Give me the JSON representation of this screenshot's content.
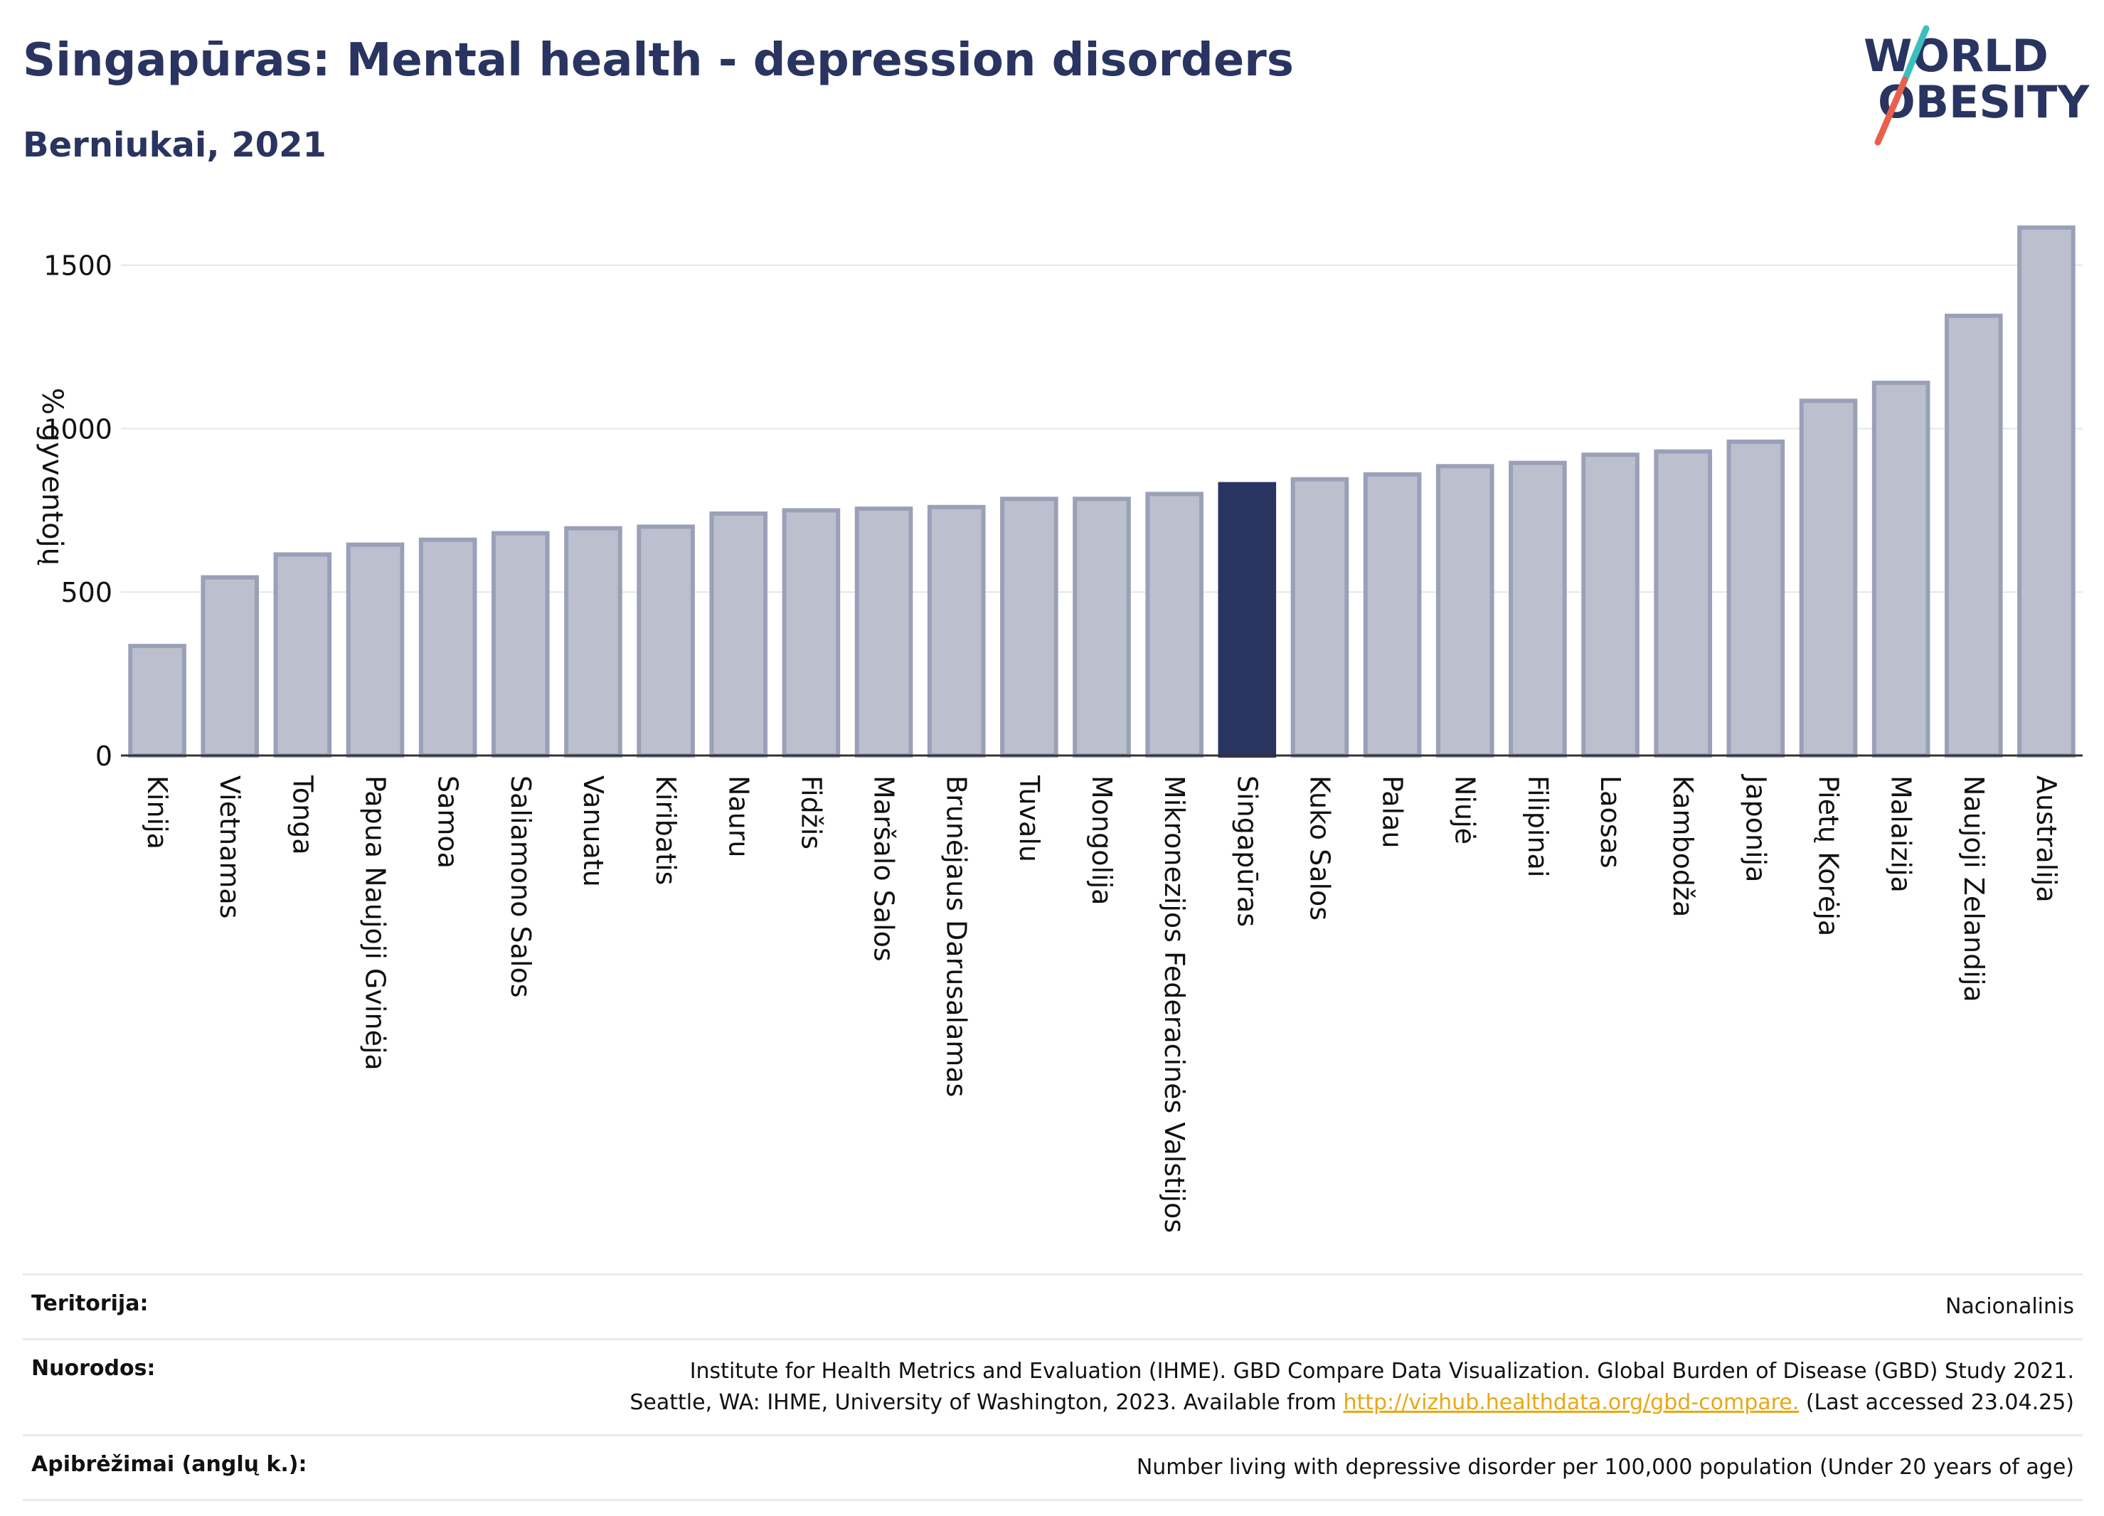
{
  "header": {
    "title": "Singapūras: Mental health - depression disorders",
    "subtitle": "Berniukai, 2021"
  },
  "logo": {
    "line1": "WORLD",
    "line2": "OBESITY",
    "colors": {
      "text": "#2a3460",
      "slash_top": "#3cbfbf",
      "slash_bottom": "#e8604c"
    }
  },
  "colors": {
    "bar_default_fill": "#bcc0ce",
    "bar_default_stroke": "#9aa0b8",
    "bar_highlight": "#2a3460",
    "grid": "#e3e6ec",
    "axis_line": "#333333"
  },
  "chart_data": {
    "type": "bar",
    "ylabel": "% gyventojų",
    "ylim": [
      0,
      1680
    ],
    "yticks": [
      0,
      500,
      1000,
      1500
    ],
    "grid": true,
    "highlight": "Singapūras",
    "categories": [
      "Kinija",
      "Vietnamas",
      "Tonga",
      "Papua Naujoji Gvinėja",
      "Samoa",
      "Saliamono Salos",
      "Vanuatu",
      "Kiribatis",
      "Nauru",
      "Fidžis",
      "Maršalo Salos",
      "Brunėjaus Darusalamas",
      "Tuvalu",
      "Mongolija",
      "Mikronezijos Federacinės Valstijos",
      "Singapūras",
      "Kuko Salos",
      "Palau",
      "Niujė",
      "Filipinai",
      "Laosas",
      "Kambodža",
      "Japonija",
      "Pietų Korėja",
      "Malaizija",
      "Naujoji Zelandija",
      "Australija"
    ],
    "values": [
      335,
      545,
      615,
      645,
      660,
      680,
      695,
      700,
      740,
      750,
      755,
      760,
      785,
      785,
      800,
      830,
      845,
      860,
      885,
      895,
      920,
      930,
      960,
      1085,
      1140,
      1345,
      1615
    ]
  },
  "meta": {
    "territory_label": "Teritorija:",
    "territory_value": "Nacionalinis",
    "refs_label": "Nuorodos:",
    "refs_line1": "Institute for Health Metrics and Evaluation (IHME). GBD Compare Data Visualization. Global Burden of Disease (GBD) Study 2021.",
    "refs_line2_prefix": "Seattle, WA: IHME, University of Washington, 2023. Available from ",
    "refs_link": "http://vizhub.healthdata.org/gbd-compare.",
    "refs_line2_suffix": " (Last accessed 23.04.25)",
    "defs_label": "Apibrėžimai (anglų k.):",
    "defs_value": "Number living with depressive disorder per 100,000 population (Under 20 years of age)"
  }
}
